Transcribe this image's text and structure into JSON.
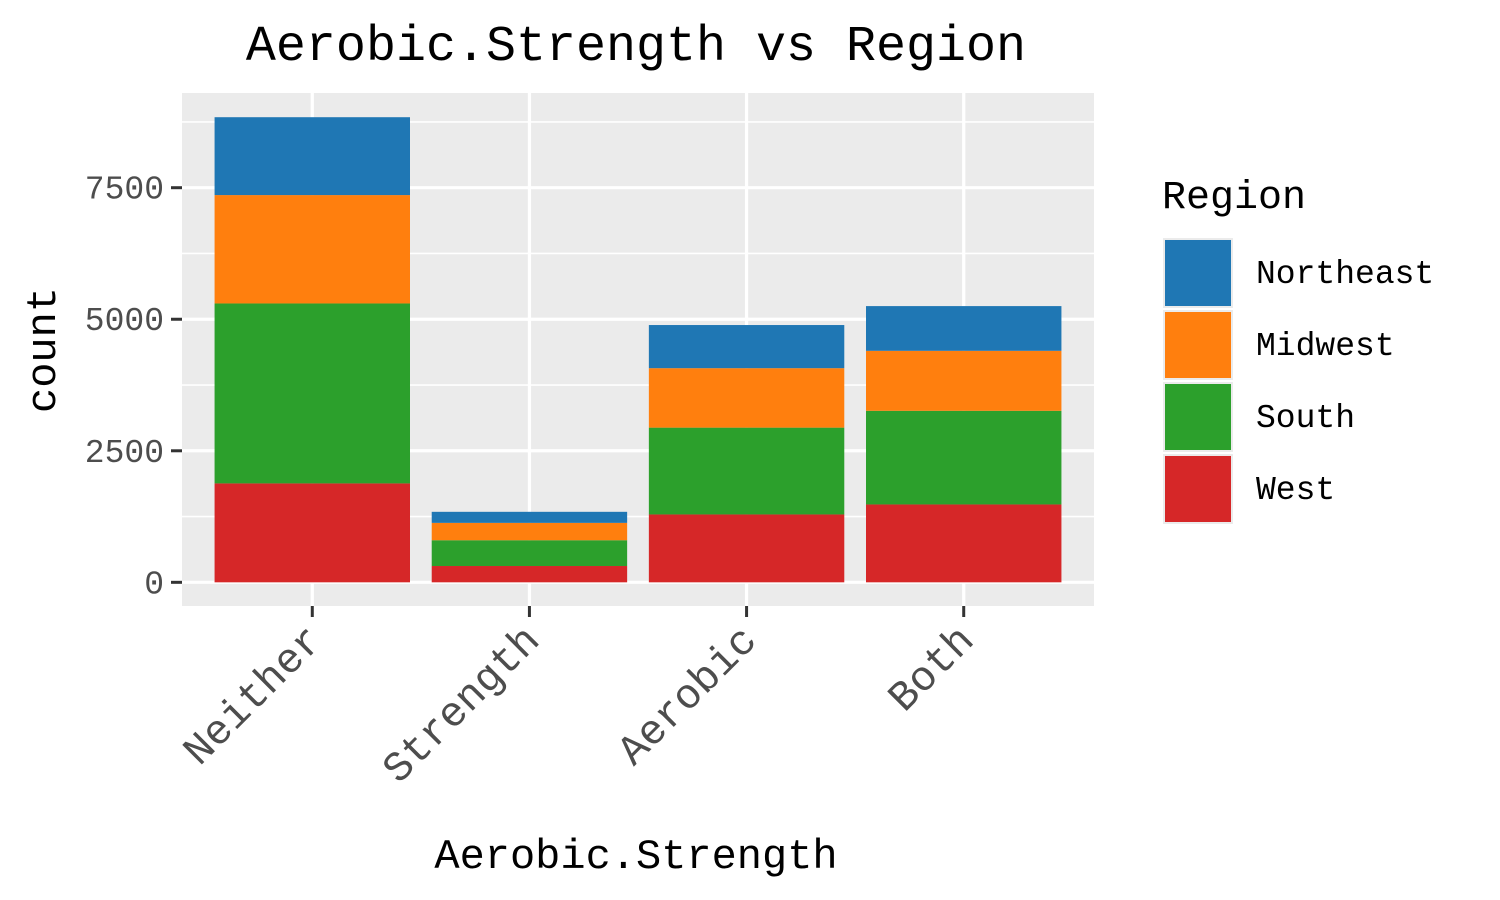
{
  "chart_data": {
    "type": "bar",
    "stacked": true,
    "title": "Aerobic.Strength vs Region",
    "xlabel": "Aerobic.Strength",
    "ylabel": "count",
    "categories": [
      "Neither",
      "Strength",
      "Aerobic",
      "Both"
    ],
    "ylim": [
      -450,
      9300
    ],
    "yticks": [
      0,
      2500,
      5000,
      7500
    ],
    "ytick_labels": [
      "0",
      "2500",
      "5000",
      "7500"
    ],
    "grid": true,
    "legend": {
      "title": "Region",
      "position": "right"
    },
    "series": [
      {
        "name": "West",
        "color": "#d62728",
        "values": [
          1880,
          310,
          1290,
          1480
        ]
      },
      {
        "name": "South",
        "color": "#2ca02c",
        "values": [
          3420,
          490,
          1650,
          1780
        ]
      },
      {
        "name": "Midwest",
        "color": "#ff7f0e",
        "values": [
          2060,
          330,
          1130,
          1140
        ]
      },
      {
        "name": "Northeast",
        "color": "#1f77b4",
        "values": [
          1480,
          210,
          820,
          850
        ]
      }
    ],
    "legend_order": [
      "Northeast",
      "Midwest",
      "South",
      "West"
    ]
  }
}
